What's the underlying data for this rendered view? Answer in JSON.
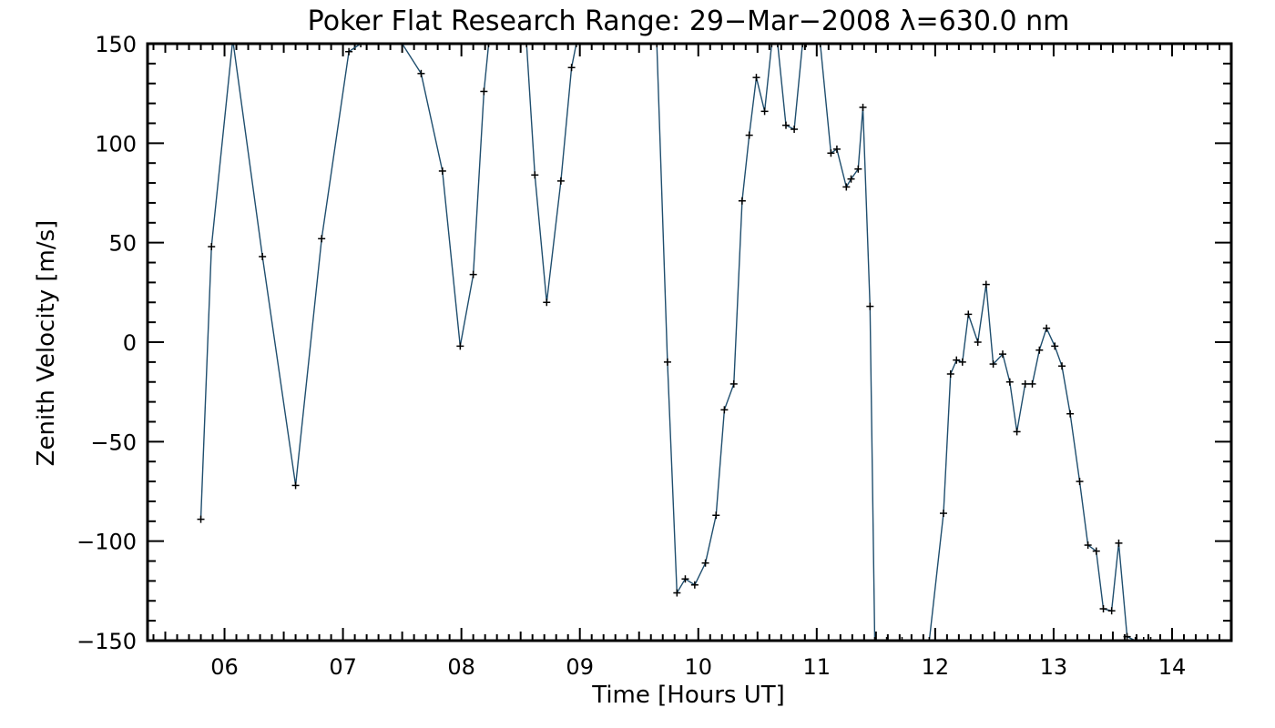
{
  "chart_data": {
    "type": "line",
    "title": "Poker Flat Research Range: 29−Mar−2008 λ=630.0 nm",
    "xlabel": "Time [Hours UT]",
    "ylabel": "Zenith Velocity [m/s]",
    "xlim": [
      5.35,
      14.5
    ],
    "ylim": [
      -150,
      150
    ],
    "x_ticks": [
      6,
      7,
      8,
      9,
      10,
      11,
      12,
      13,
      14
    ],
    "x_tick_labels": [
      "06",
      "07",
      "08",
      "09",
      "10",
      "11",
      "12",
      "13",
      "14"
    ],
    "y_ticks": [
      -150,
      -100,
      -50,
      0,
      50,
      100,
      150
    ],
    "y_tick_labels": [
      "−150",
      "−100",
      "−50",
      "0",
      "50",
      "100",
      "150"
    ],
    "grid": false,
    "line_color": "#1f4e6e",
    "marker": "plus",
    "series": [
      {
        "x": [
          5.8,
          5.89,
          6.07,
          6.32,
          6.6,
          6.82,
          7.05,
          7.15,
          7.5,
          7.66,
          7.84,
          7.99,
          8.1,
          8.19,
          8.23,
          8.55,
          8.62,
          8.72,
          8.84,
          8.93,
          8.97,
          9.65,
          9.74,
          9.82,
          9.89,
          9.97,
          10.06,
          10.15,
          10.22,
          10.3,
          10.37,
          10.43,
          10.49,
          10.56,
          10.62,
          10.67,
          10.74,
          10.81,
          10.88,
          10.91,
          11.03,
          11.12,
          11.17,
          11.25,
          11.29,
          11.35,
          11.39,
          11.45,
          11.49,
          11.59,
          11.72,
          11.95,
          12.07,
          12.13,
          12.18,
          12.23,
          12.28,
          12.36,
          12.43,
          12.49,
          12.57,
          12.63,
          12.69,
          12.76,
          12.82,
          12.88,
          12.94,
          13.01,
          13.07,
          13.14,
          13.22,
          13.29,
          13.36,
          13.42,
          13.49,
          13.55,
          13.62,
          13.69,
          13.76,
          13.82
        ],
        "y": [
          -89,
          48,
          152,
          43,
          -72,
          52,
          146,
          150,
          150,
          135,
          86,
          -2,
          34,
          126,
          150,
          150,
          84,
          20,
          81,
          138,
          150,
          150,
          -10,
          -126,
          -119,
          -122,
          -111,
          -87,
          -34,
          -21,
          71,
          104,
          133,
          116,
          150,
          150,
          109,
          107,
          150,
          150,
          150,
          95,
          97,
          78,
          82,
          87,
          118,
          18,
          -150,
          -150,
          -150,
          -150,
          -86,
          -16,
          -9,
          -10,
          14,
          0,
          29,
          -11,
          -6,
          -20,
          -45,
          -21,
          -21,
          -4,
          7,
          -2,
          -12,
          -36,
          -70,
          -102,
          -105,
          -134,
          -135,
          -101,
          -148,
          -150,
          -150,
          -150
        ]
      }
    ]
  }
}
